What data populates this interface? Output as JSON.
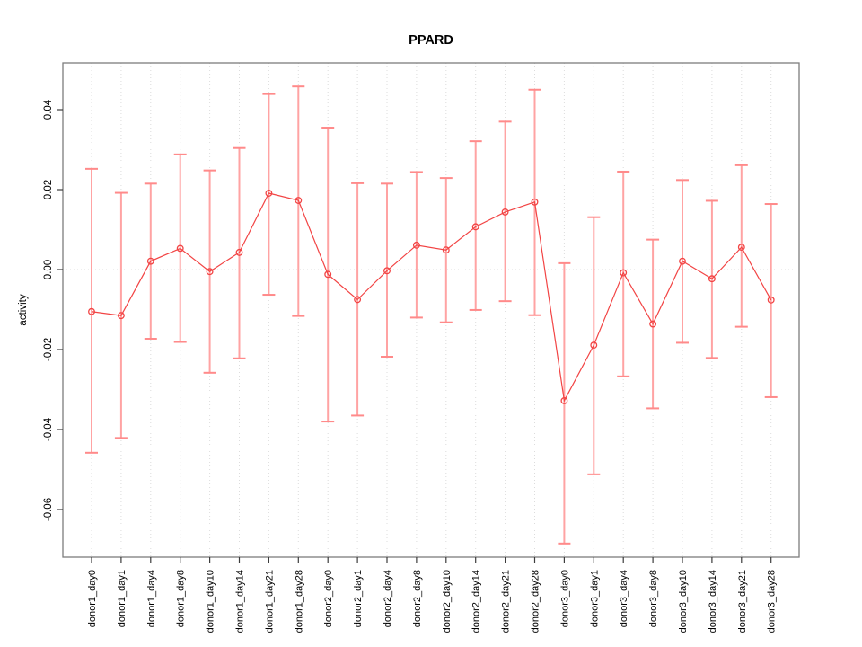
{
  "figure": {
    "title": "PPARD",
    "y_axis_label": "activity"
  },
  "chart_data": {
    "type": "line",
    "title": "PPARD",
    "xlabel": "",
    "ylabel": "activity",
    "marker": "open-circle",
    "error_bars": true,
    "legend": "none",
    "grid": "dotted vertical line per category, dotted horizontal line at y=0",
    "ylim": [
      -0.072,
      0.052
    ],
    "categories": [
      "donor1_day0",
      "donor1_day1",
      "donor1_day4",
      "donor1_day8",
      "donor1_day10",
      "donor1_day14",
      "donor1_day21",
      "donor1_day28",
      "donor2_day0",
      "donor2_day1",
      "donor2_day4",
      "donor2_day8",
      "donor2_day10",
      "donor2_day14",
      "donor2_day21",
      "donor2_day28",
      "donor3_day0",
      "donor3_day1",
      "donor3_day4",
      "donor3_day8",
      "donor3_day10",
      "donor3_day14",
      "donor3_day21",
      "donor3_day28"
    ],
    "series": [
      {
        "name": "activity",
        "values": [
          -0.0105,
          -0.0115,
          0.0021,
          0.0053,
          -0.0005,
          0.0043,
          0.0191,
          0.0173,
          -0.0012,
          -0.0075,
          -0.0003,
          0.0061,
          0.0049,
          0.0107,
          0.0144,
          0.0169,
          -0.0328,
          -0.0189,
          -0.0008,
          -0.0136,
          0.0021,
          -0.0023,
          0.0056,
          -0.0076
        ],
        "error_low": [
          -0.0458,
          -0.0421,
          -0.0173,
          -0.0181,
          -0.0258,
          -0.0222,
          -0.0063,
          -0.0116,
          -0.038,
          -0.0365,
          -0.0218,
          -0.012,
          -0.0132,
          -0.0101,
          -0.0079,
          -0.0114,
          -0.0685,
          -0.0512,
          -0.0267,
          -0.0347,
          -0.0183,
          -0.0221,
          -0.0143,
          -0.0319
        ],
        "error_high": [
          0.0252,
          0.0192,
          0.0215,
          0.0288,
          0.0248,
          0.0304,
          0.0439,
          0.0458,
          0.0355,
          0.0216,
          0.0215,
          0.0244,
          0.0229,
          0.0321,
          0.037,
          0.045,
          0.0016,
          0.0131,
          0.0245,
          0.0075,
          0.0224,
          0.0172,
          0.0261,
          0.0164
        ]
      }
    ],
    "yticks": {
      "values": [
        0.04,
        0.02,
        0.0,
        -0.02,
        -0.04,
        -0.06
      ],
      "labels": [
        "0.04",
        "0.02",
        "0.00",
        "-0.02",
        "-0.04",
        "-0.06"
      ]
    },
    "colors": {
      "point_line": "#f24444",
      "error_bar": "#ffa3a3",
      "error_cap": "#ff8a8a",
      "grid": "#dcdcdc",
      "axis_box": "#7d7d7d",
      "tick": "#3c3c3c",
      "text": "#000000",
      "background": "#ffffff"
    }
  }
}
